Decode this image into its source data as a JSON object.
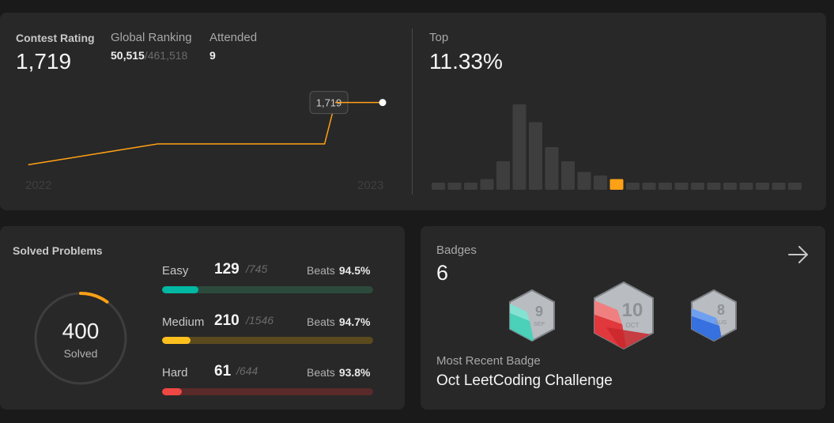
{
  "contest": {
    "rating_label": "Contest Rating",
    "rating_value": "1,719",
    "ranking_label": "Global Ranking",
    "ranking_value": "50,515",
    "ranking_total": "/461,518",
    "attended_label": "Attended",
    "attended_value": "9",
    "tooltip_value": "1,719",
    "year_start": "2022",
    "year_end": "2023",
    "top_label": "Top",
    "top_value": "11.33%"
  },
  "chart_data": [
    {
      "type": "line",
      "x": [
        "2022",
        "",
        "",
        "",
        "",
        "",
        "",
        "",
        "2023"
      ],
      "series": [
        {
          "values": [
            1540,
            1560,
            1580,
            1600,
            1600,
            1600,
            1600,
            1600,
            1719
          ]
        }
      ],
      "ylim": [
        1500,
        1750
      ],
      "xlabel": "",
      "ylabel": ""
    },
    {
      "type": "bar",
      "values": [
        2,
        2,
        2,
        3,
        8,
        24,
        19,
        12,
        8,
        5,
        4,
        3,
        2,
        2,
        2,
        2,
        2,
        2,
        2,
        2,
        2,
        2,
        2
      ],
      "highlight_index": 11,
      "highlight_color": "#ffa116",
      "bar_color": "#3e3e3e",
      "xlabel": "",
      "ylabel": ""
    }
  ],
  "solved": {
    "title": "Solved Problems",
    "count": "400",
    "sub": "Solved",
    "progress_fraction": 0.1,
    "ring_color": "#ffa116",
    "levels": [
      {
        "name": "Easy",
        "count": "129",
        "total": "/745",
        "beats_label": "Beats",
        "beats": "94.5%",
        "fraction": 0.173,
        "color": "#00b8a3",
        "track": "#2c4a3c"
      },
      {
        "name": "Medium",
        "count": "210",
        "total": "/1546",
        "beats_label": "Beats",
        "beats": "94.7%",
        "fraction": 0.136,
        "color": "#ffc01e",
        "track": "#5a4a1e"
      },
      {
        "name": "Hard",
        "count": "61",
        "total": "/644",
        "beats_label": "Beats",
        "beats": "93.8%",
        "fraction": 0.095,
        "color": "#ef4743",
        "track": "#5a2a2a"
      }
    ]
  },
  "badges": {
    "label": "Badges",
    "count": "6",
    "items": [
      {
        "num": "9",
        "month": "SEP",
        "color": "#3fd2b8",
        "icon": "sep-badge-icon"
      },
      {
        "num": "10",
        "month": "OCT",
        "color": "#e0383c",
        "icon": "oct-badge-icon"
      },
      {
        "num": "8",
        "month": "AUG",
        "color": "#2f6ce0",
        "icon": "aug-badge-icon"
      }
    ],
    "recent_label": "Most Recent Badge",
    "recent_name": "Oct LeetCoding Challenge",
    "arrow_icon": "arrow-right-icon"
  }
}
